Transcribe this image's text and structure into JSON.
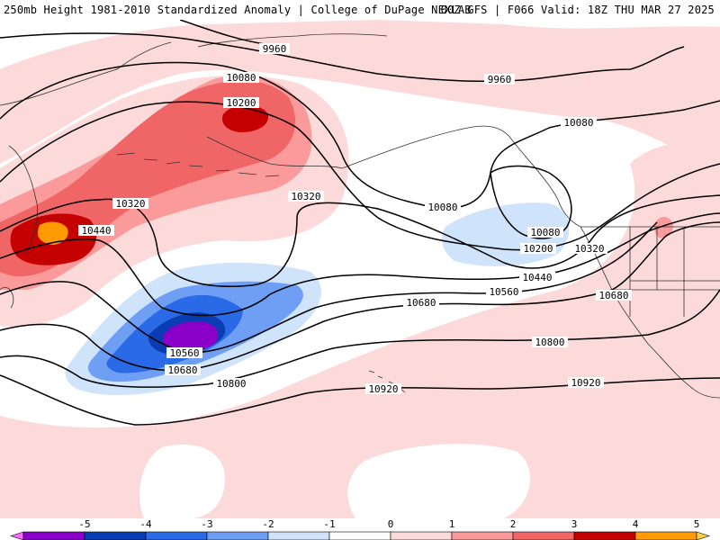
{
  "header": {
    "left": "250mb Height 1981-2010 Standardized Anomaly | College of DuPage NEXLAB",
    "right": "00Z GFS | F066 Valid: 18Z THU MAR 27 2025"
  },
  "contour_labels": [
    "9960",
    "9960",
    "10080",
    "10080",
    "10080",
    "10080",
    "10200",
    "10200",
    "10320",
    "10320",
    "10320",
    "10440",
    "10440",
    "10560",
    "10560",
    "10680",
    "10680",
    "10680",
    "10800",
    "10800",
    "10920",
    "10920"
  ],
  "legend": {
    "ticks": [
      "-5",
      "-4",
      "-3",
      "-2",
      "-1",
      "0",
      "1",
      "2",
      "3",
      "4",
      "5"
    ],
    "colors": [
      "#ff66ff",
      "#8a00c8",
      "#0a3cb4",
      "#2a6ae6",
      "#6f9ff5",
      "#cfe3fb",
      "#ffffff",
      "#fcdada",
      "#fa9a9a",
      "#f06666",
      "#c40000",
      "#ff9a00",
      "#ffd24a"
    ]
  }
}
